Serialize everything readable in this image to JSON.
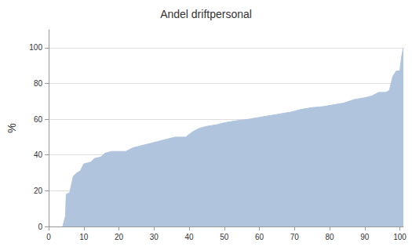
{
  "chart_data": {
    "type": "area",
    "title": "Andel driftpersonal",
    "y_label": "%",
    "x": [
      4,
      4.8,
      5,
      6,
      7,
      8,
      9,
      10,
      11,
      12,
      13,
      15,
      16,
      18,
      22,
      24,
      26,
      28,
      30,
      32,
      34,
      36,
      39,
      41,
      43,
      45,
      48,
      50,
      53,
      57,
      60,
      63,
      66,
      69,
      72,
      75,
      78,
      81,
      84,
      87,
      90,
      92,
      94,
      96,
      97,
      98,
      99,
      100,
      100.5,
      101
    ],
    "values": [
      0,
      6,
      18,
      19,
      28,
      30,
      31,
      35,
      35.5,
      36,
      38,
      39,
      41,
      42,
      42,
      44,
      45,
      46,
      47,
      48,
      49,
      50,
      50,
      53,
      55,
      56,
      57,
      58,
      59,
      60,
      61,
      62,
      63,
      64,
      65.5,
      66.5,
      67,
      68,
      69,
      71,
      72,
      73,
      75,
      75,
      76,
      84,
      87,
      87,
      95,
      100
    ],
    "color": "#b0c4de",
    "xlim": [
      0,
      101
    ],
    "xticks": [
      0,
      10,
      20,
      30,
      40,
      50,
      60,
      70,
      80,
      90,
      100
    ],
    "ylim": [
      0,
      110
    ],
    "yticks": [
      0,
      20,
      40,
      60,
      80,
      100
    ],
    "grid": true
  }
}
